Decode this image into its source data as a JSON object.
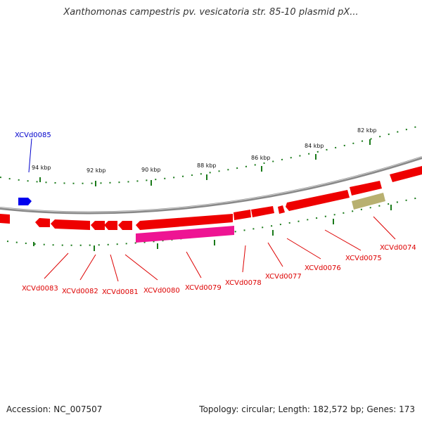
{
  "title": "Xanthomonas campestris pv. vesicatoria str. 85-10 plasmid pX...",
  "footer": {
    "accession": "Accession: NC_007507",
    "topology": "Topology: circular; Length: 182,572 bp; Genes: 173"
  },
  "ruler": {
    "labels": [
      "94 kbp",
      "92 kbp",
      "90 kbp",
      "88 kbp",
      "86 kbp",
      "84 kbp",
      "82 kbp"
    ]
  },
  "genes": {
    "XCVd0085": "XCVd0085",
    "XCVd0083": "XCVd0083",
    "XCVd0082": "XCVd0082",
    "XCVd0081": "XCVd0081",
    "XCVd0080": "XCVd0080",
    "XCVd0079": "XCVd0079",
    "XCVd0078": "XCVd0078",
    "XCVd0077": "XCVd0077",
    "XCVd0076": "XCVd0076",
    "XCVd0075": "XCVd0075",
    "XCVd0074": "XCVd0074"
  },
  "colors": {
    "cds": "#ee0000",
    "cds_highlight": "#ff5555",
    "selected_gene": "#0000ee",
    "pink_feature": "#ee1493",
    "olive_feature": "#b8b070",
    "backbone": "#888888",
    "tick": "#1a7a1a"
  }
}
